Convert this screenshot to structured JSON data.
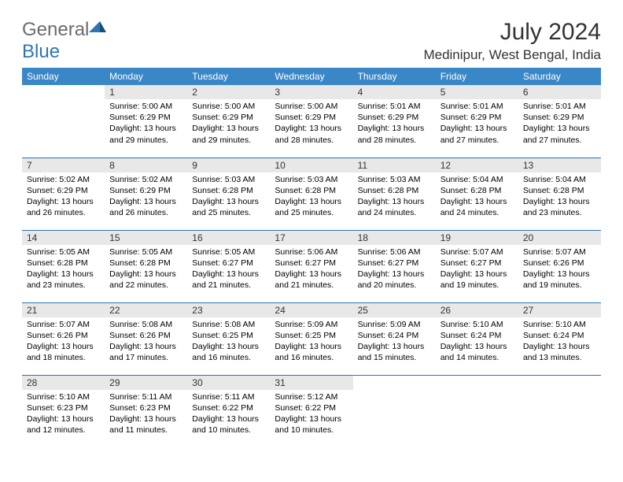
{
  "logo": {
    "text_gray": "General",
    "text_blue": "Blue"
  },
  "title": "July 2024",
  "location": "Medinipur, West Bengal, India",
  "columns": [
    "Sunday",
    "Monday",
    "Tuesday",
    "Wednesday",
    "Thursday",
    "Friday",
    "Saturday"
  ],
  "colors": {
    "header_bg": "#3a87c8",
    "header_fg": "#ffffff",
    "daynum_bg": "#e8e8e8",
    "row_border": "#2d76b5",
    "logo_gray": "#6b6b6b",
    "logo_blue": "#2d76b5",
    "body_bg": "#ffffff",
    "text": "#000000"
  },
  "fonts": {
    "family": "Arial",
    "title_size": 30,
    "location_size": 17,
    "header_size": 12,
    "daynum_size": 12,
    "body_size": 10.5
  },
  "weeks": [
    [
      null,
      {
        "n": 1,
        "sunrise": "5:00 AM",
        "sunset": "6:29 PM",
        "daylight_h": 13,
        "daylight_m": 29
      },
      {
        "n": 2,
        "sunrise": "5:00 AM",
        "sunset": "6:29 PM",
        "daylight_h": 13,
        "daylight_m": 29
      },
      {
        "n": 3,
        "sunrise": "5:00 AM",
        "sunset": "6:29 PM",
        "daylight_h": 13,
        "daylight_m": 28
      },
      {
        "n": 4,
        "sunrise": "5:01 AM",
        "sunset": "6:29 PM",
        "daylight_h": 13,
        "daylight_m": 28
      },
      {
        "n": 5,
        "sunrise": "5:01 AM",
        "sunset": "6:29 PM",
        "daylight_h": 13,
        "daylight_m": 27
      },
      {
        "n": 6,
        "sunrise": "5:01 AM",
        "sunset": "6:29 PM",
        "daylight_h": 13,
        "daylight_m": 27
      }
    ],
    [
      {
        "n": 7,
        "sunrise": "5:02 AM",
        "sunset": "6:29 PM",
        "daylight_h": 13,
        "daylight_m": 26
      },
      {
        "n": 8,
        "sunrise": "5:02 AM",
        "sunset": "6:29 PM",
        "daylight_h": 13,
        "daylight_m": 26
      },
      {
        "n": 9,
        "sunrise": "5:03 AM",
        "sunset": "6:28 PM",
        "daylight_h": 13,
        "daylight_m": 25
      },
      {
        "n": 10,
        "sunrise": "5:03 AM",
        "sunset": "6:28 PM",
        "daylight_h": 13,
        "daylight_m": 25
      },
      {
        "n": 11,
        "sunrise": "5:03 AM",
        "sunset": "6:28 PM",
        "daylight_h": 13,
        "daylight_m": 24
      },
      {
        "n": 12,
        "sunrise": "5:04 AM",
        "sunset": "6:28 PM",
        "daylight_h": 13,
        "daylight_m": 24
      },
      {
        "n": 13,
        "sunrise": "5:04 AM",
        "sunset": "6:28 PM",
        "daylight_h": 13,
        "daylight_m": 23
      }
    ],
    [
      {
        "n": 14,
        "sunrise": "5:05 AM",
        "sunset": "6:28 PM",
        "daylight_h": 13,
        "daylight_m": 23
      },
      {
        "n": 15,
        "sunrise": "5:05 AM",
        "sunset": "6:28 PM",
        "daylight_h": 13,
        "daylight_m": 22
      },
      {
        "n": 16,
        "sunrise": "5:05 AM",
        "sunset": "6:27 PM",
        "daylight_h": 13,
        "daylight_m": 21
      },
      {
        "n": 17,
        "sunrise": "5:06 AM",
        "sunset": "6:27 PM",
        "daylight_h": 13,
        "daylight_m": 21
      },
      {
        "n": 18,
        "sunrise": "5:06 AM",
        "sunset": "6:27 PM",
        "daylight_h": 13,
        "daylight_m": 20
      },
      {
        "n": 19,
        "sunrise": "5:07 AM",
        "sunset": "6:27 PM",
        "daylight_h": 13,
        "daylight_m": 19
      },
      {
        "n": 20,
        "sunrise": "5:07 AM",
        "sunset": "6:26 PM",
        "daylight_h": 13,
        "daylight_m": 19
      }
    ],
    [
      {
        "n": 21,
        "sunrise": "5:07 AM",
        "sunset": "6:26 PM",
        "daylight_h": 13,
        "daylight_m": 18
      },
      {
        "n": 22,
        "sunrise": "5:08 AM",
        "sunset": "6:26 PM",
        "daylight_h": 13,
        "daylight_m": 17
      },
      {
        "n": 23,
        "sunrise": "5:08 AM",
        "sunset": "6:25 PM",
        "daylight_h": 13,
        "daylight_m": 16
      },
      {
        "n": 24,
        "sunrise": "5:09 AM",
        "sunset": "6:25 PM",
        "daylight_h": 13,
        "daylight_m": 16
      },
      {
        "n": 25,
        "sunrise": "5:09 AM",
        "sunset": "6:24 PM",
        "daylight_h": 13,
        "daylight_m": 15
      },
      {
        "n": 26,
        "sunrise": "5:10 AM",
        "sunset": "6:24 PM",
        "daylight_h": 13,
        "daylight_m": 14
      },
      {
        "n": 27,
        "sunrise": "5:10 AM",
        "sunset": "6:24 PM",
        "daylight_h": 13,
        "daylight_m": 13
      }
    ],
    [
      {
        "n": 28,
        "sunrise": "5:10 AM",
        "sunset": "6:23 PM",
        "daylight_h": 13,
        "daylight_m": 12
      },
      {
        "n": 29,
        "sunrise": "5:11 AM",
        "sunset": "6:23 PM",
        "daylight_h": 13,
        "daylight_m": 11
      },
      {
        "n": 30,
        "sunrise": "5:11 AM",
        "sunset": "6:22 PM",
        "daylight_h": 13,
        "daylight_m": 10
      },
      {
        "n": 31,
        "sunrise": "5:12 AM",
        "sunset": "6:22 PM",
        "daylight_h": 13,
        "daylight_m": 10
      },
      null,
      null,
      null
    ]
  ]
}
